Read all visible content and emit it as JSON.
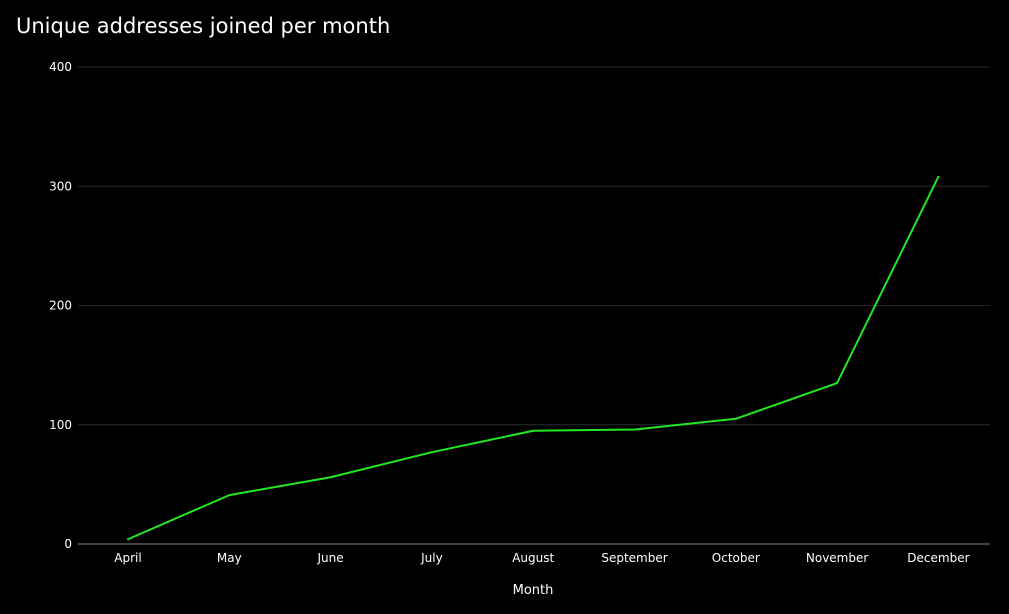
{
  "chart_data": {
    "type": "line",
    "title": "Unique addresses joined per month",
    "xlabel": "Month",
    "ylabel": "",
    "categories": [
      "April",
      "May",
      "June",
      "July",
      "August",
      "September",
      "October",
      "November",
      "December"
    ],
    "series": [
      {
        "values": [
          4,
          41,
          56,
          77,
          95,
          96,
          105,
          135,
          308
        ],
        "color": "#22e822"
      }
    ],
    "ylim": [
      0,
      400
    ],
    "yticks": [
      0,
      100,
      200,
      300,
      400
    ],
    "grid": true,
    "legend": "none",
    "colors": {
      "background": "#000000",
      "grid": "#2a2a2a",
      "axis": "#888888",
      "text": "#ffffff"
    }
  }
}
